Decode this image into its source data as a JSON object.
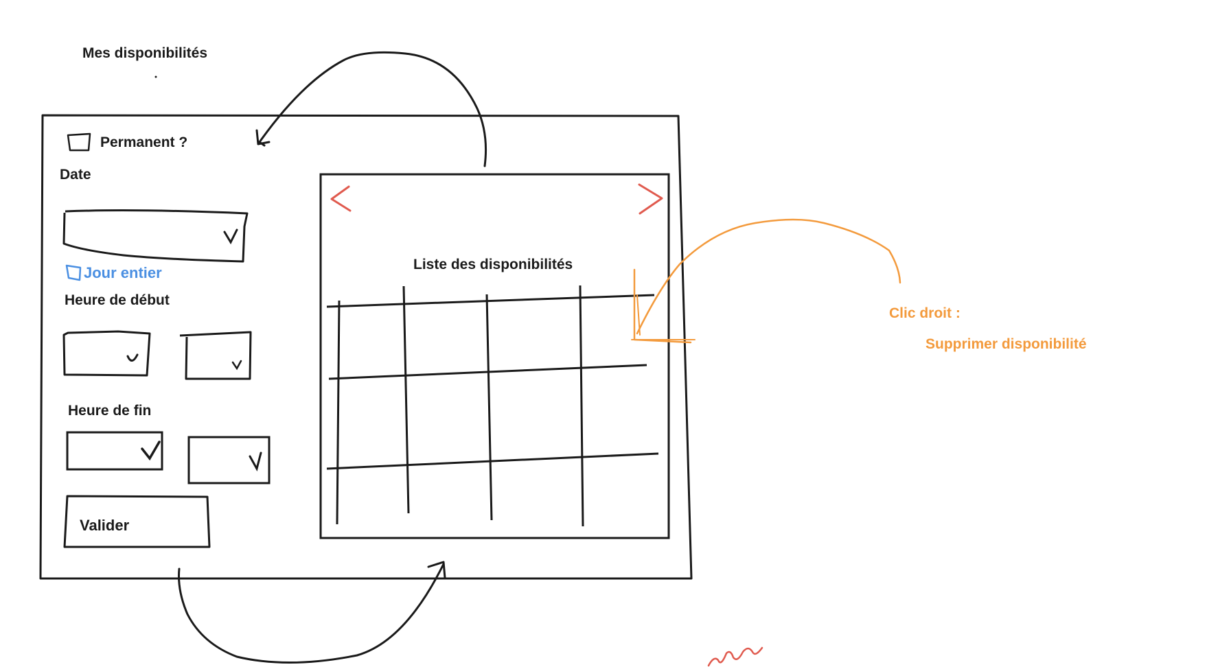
{
  "page_title": "Mes disponibilités",
  "form": {
    "permanent_label": "Permanent ?",
    "date_label": "Date",
    "full_day_label": "Jour entier",
    "start_time_label": "Heure de début",
    "end_time_label": "Heure de fin",
    "submit_label": "Valider"
  },
  "calendar": {
    "title": "Liste des disponibilités",
    "prev_icon": "chevron-left-icon",
    "next_icon": "chevron-right-icon"
  },
  "annotation": {
    "title": "Clic droit :",
    "action": "Supprimer disponibilité"
  },
  "colors": {
    "ink": "#1a1a1a",
    "accent_blue": "#4a8fe2",
    "nav_red": "#e05a4e",
    "annotation_orange": "#f39a3c"
  }
}
